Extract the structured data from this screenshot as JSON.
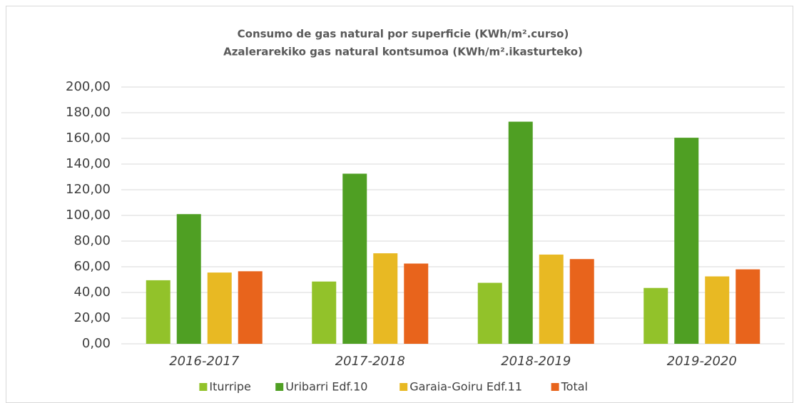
{
  "chart_data": {
    "type": "bar",
    "title": [
      "Consumo de gas natural por superficie (KWh/m².curso)",
      "Azalerarekiko gas natural kontsumoa (KWh/m².ikasturteko)"
    ],
    "categories": [
      "2016-2017",
      "2017-2018",
      "2018-2019",
      "2019-2020"
    ],
    "series": [
      {
        "name": "Iturripe",
        "color": "#92c22a",
        "values": [
          49.5,
          48.5,
          47.5,
          43.5
        ]
      },
      {
        "name": "Uribarri Edf.10",
        "color": "#4f9f23",
        "values": [
          101,
          132.5,
          173,
          160.5
        ]
      },
      {
        "name": "Garaia-Goiru Edf.11",
        "color": "#e8b923",
        "values": [
          55.5,
          70.5,
          69.5,
          52.5
        ]
      },
      {
        "name": "Total",
        "color": "#e8641c",
        "values": [
          56.5,
          62.5,
          66,
          58
        ]
      }
    ],
    "ylim": [
      0,
      200
    ],
    "yticks": [
      {
        "value": 0,
        "label": "0,00"
      },
      {
        "value": 20,
        "label": "20,00"
      },
      {
        "value": 40,
        "label": "40,00"
      },
      {
        "value": 60,
        "label": "60,00"
      },
      {
        "value": 80,
        "label": "80,00"
      },
      {
        "value": 100,
        "label": "100,00"
      },
      {
        "value": 120,
        "label": "120,00"
      },
      {
        "value": 140,
        "label": "140,00"
      },
      {
        "value": 160,
        "label": "160,00"
      },
      {
        "value": 180,
        "label": "180,00"
      },
      {
        "value": 200,
        "label": "200,00"
      }
    ],
    "grid": true,
    "legend": "bottom"
  }
}
